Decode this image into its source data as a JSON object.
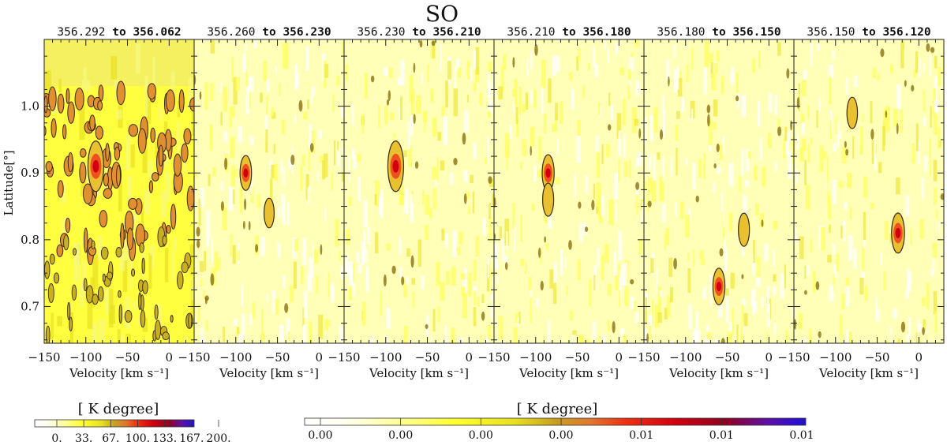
{
  "chart_data": {
    "type": "heatmap",
    "title": "SO",
    "xlabel": "Velocity [km s⁻¹]",
    "ylabel": "Latitude[°]",
    "xlim": [
      -150,
      30
    ],
    "ylim": [
      0.645,
      1.1
    ],
    "x_ticks": [
      -150,
      -100,
      -50,
      0
    ],
    "x_tick_labels": [
      "−150",
      "−100",
      "−50",
      "0"
    ],
    "y_ticks": [
      0.7,
      0.8,
      0.9,
      1.0
    ],
    "y_tick_labels": [
      "0.7",
      "0.8",
      "0.9",
      "1.0"
    ],
    "panels": [
      {
        "from": "356.292",
        "to": "356.062",
        "mode": "wide",
        "features": [
          {
            "v": -88,
            "lat": 0.91,
            "intensity": 1.0
          }
        ]
      },
      {
        "from": "356.260",
        "to": "356.230",
        "mode": "faint",
        "features": [
          {
            "v": -88,
            "lat": 0.9,
            "intensity": 0.55
          },
          {
            "v": -60,
            "lat": 0.84,
            "intensity": 0.4
          }
        ]
      },
      {
        "from": "356.230",
        "to": "356.210",
        "mode": "faint",
        "features": [
          {
            "v": -88,
            "lat": 0.91,
            "intensity": 1.0
          }
        ]
      },
      {
        "from": "356.210",
        "to": "356.180",
        "mode": "faint",
        "features": [
          {
            "v": -85,
            "lat": 0.9,
            "intensity": 0.6
          },
          {
            "v": -85,
            "lat": 0.86,
            "intensity": 0.5
          }
        ]
      },
      {
        "from": "356.180",
        "to": "356.150",
        "mode": "faint",
        "features": [
          {
            "v": -60,
            "lat": 0.73,
            "intensity": 0.6
          },
          {
            "v": -30,
            "lat": 0.815,
            "intensity": 0.5
          }
        ]
      },
      {
        "from": "356.150",
        "to": "356.120",
        "mode": "faint",
        "features": [
          {
            "v": -25,
            "lat": 0.81,
            "intensity": 0.7
          },
          {
            "v": -80,
            "lat": 0.99,
            "intensity": 0.45
          }
        ]
      }
    ],
    "colorbar_left": {
      "label": "[ K degree]",
      "ticks": [
        "0.",
        "33.",
        "67.",
        "100.",
        "133.",
        "167.",
        "200."
      ]
    },
    "colorbar_right": {
      "label": "[ K degree]",
      "ticks": [
        "0.00",
        "0.00",
        "0.00",
        "0.00",
        "0.01",
        "0.01",
        "0.01"
      ]
    },
    "colormap": [
      "#ffffff",
      "#ffffa0",
      "#ffff30",
      "#e8e020",
      "#c8a020",
      "#e07830",
      "#f03010",
      "#d00010",
      "#900020",
      "#6010a0",
      "#2010e0"
    ]
  },
  "panel_separator": "to"
}
